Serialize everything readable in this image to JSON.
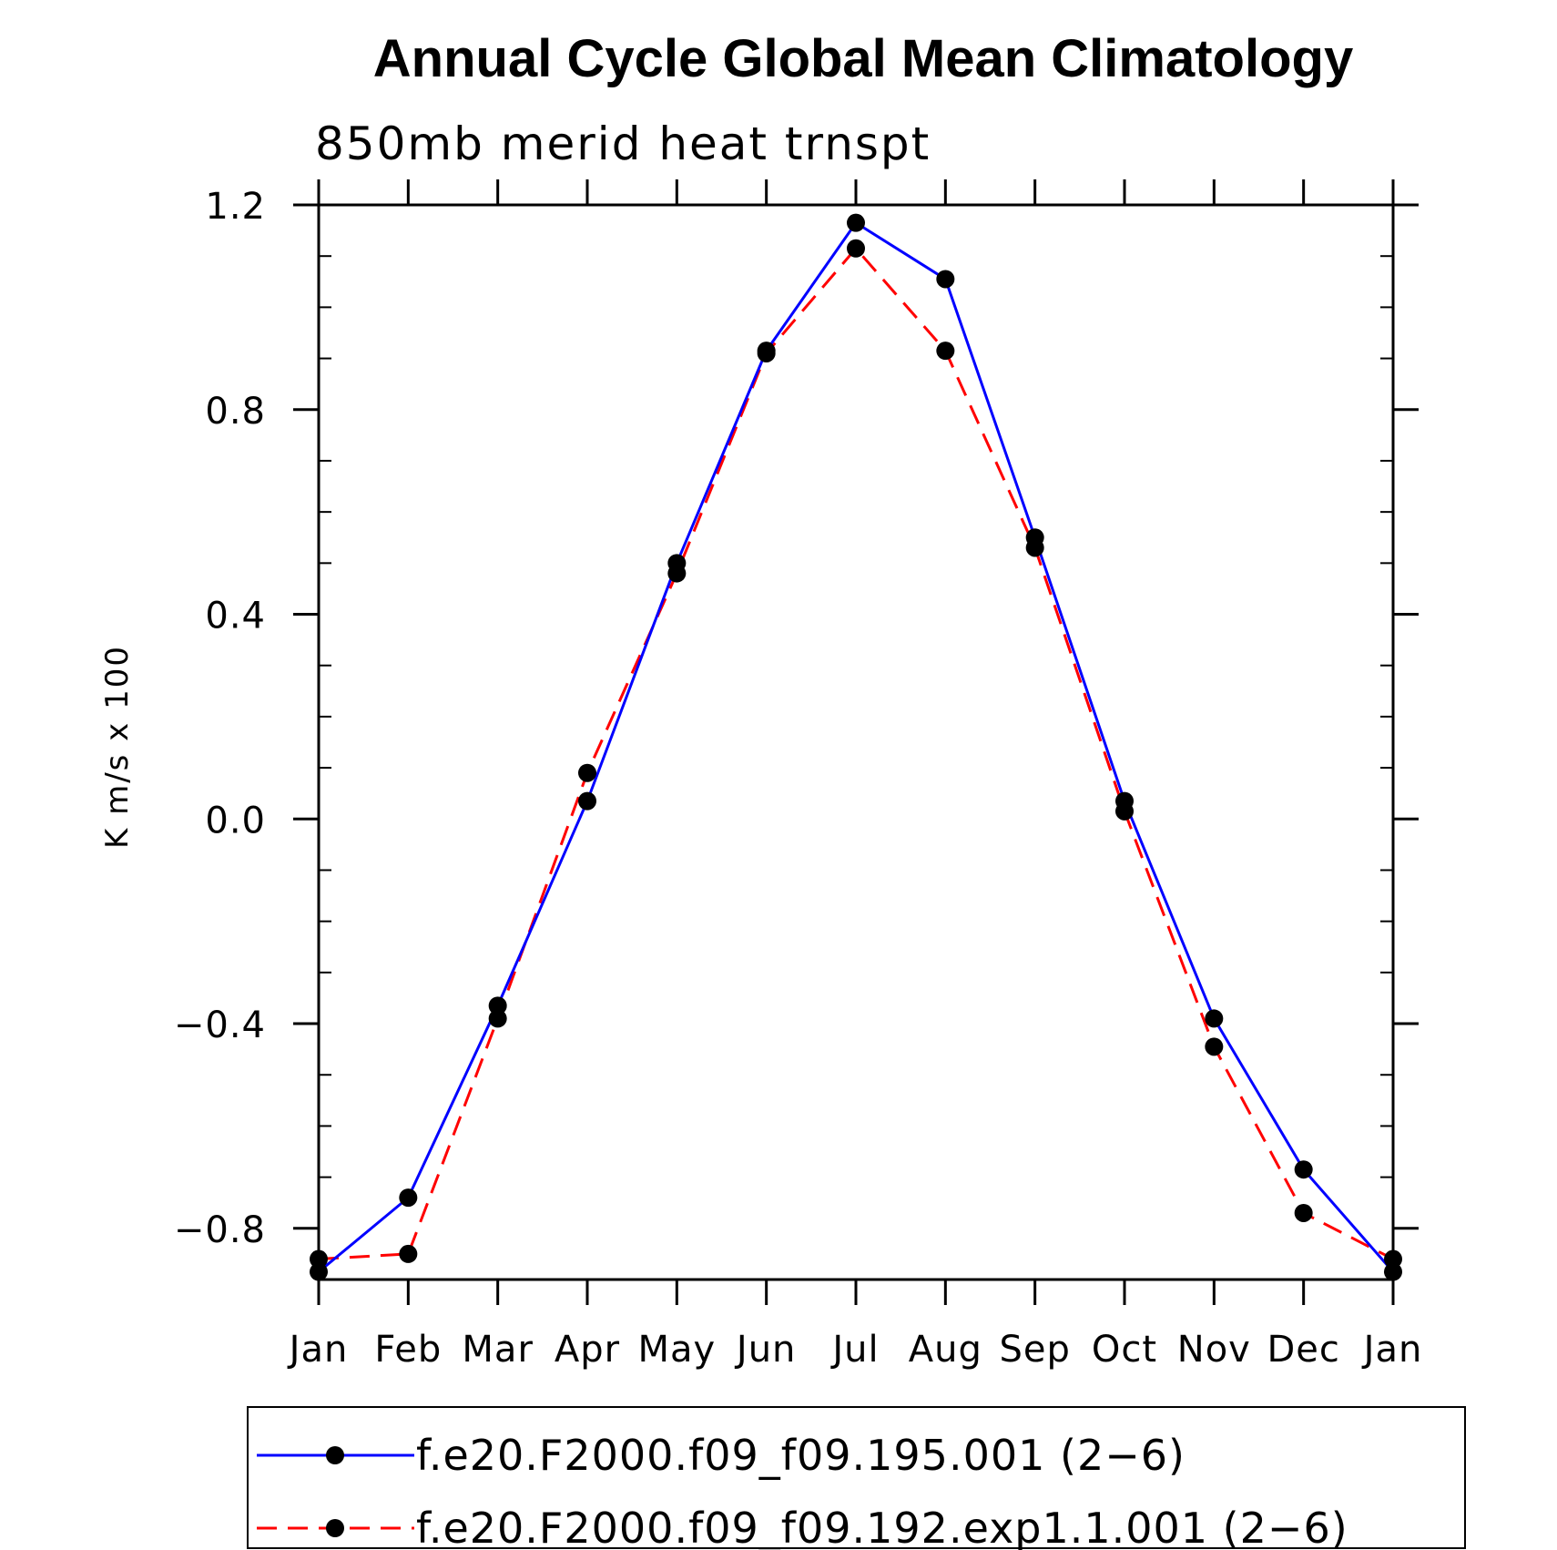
{
  "chart_data": {
    "type": "line",
    "title": "Annual Cycle Global Mean Climatology",
    "subtitle": "850mb merid heat trnspt",
    "ylabel": "K m/s x 100",
    "xlabel": "",
    "categories": [
      "Jan",
      "Feb",
      "Mar",
      "Apr",
      "May",
      "Jun",
      "Jul",
      "Aug",
      "Sep",
      "Oct",
      "Nov",
      "Dec",
      "Jan"
    ],
    "yticks": [
      "1.2",
      "0.8",
      "0.4",
      "0.0",
      "−0.4",
      "−0.8"
    ],
    "ylim": [
      -0.9,
      1.2
    ],
    "grid": false,
    "legend_position": "bottom",
    "series": [
      {
        "name": "f.e20.F2000.f09_f09.195.001 (2−6)",
        "color": "#0000ff",
        "line_style": "solid",
        "marker": "filled-circle",
        "values": [
          -0.885,
          -0.74,
          -0.365,
          0.035,
          0.5,
          0.915,
          1.165,
          1.055,
          0.55,
          0.035,
          -0.39,
          -0.685,
          -0.885
        ]
      },
      {
        "name": "f.e20.F2000.f09_f09.192.exp1.1.001 (2−6)",
        "color": "#ff0000",
        "line_style": "dashed",
        "marker": "filled-circle",
        "values": [
          -0.86,
          -0.85,
          -0.39,
          0.09,
          0.48,
          0.91,
          1.115,
          0.915,
          0.53,
          0.015,
          -0.445,
          -0.77,
          -0.86
        ]
      }
    ]
  }
}
